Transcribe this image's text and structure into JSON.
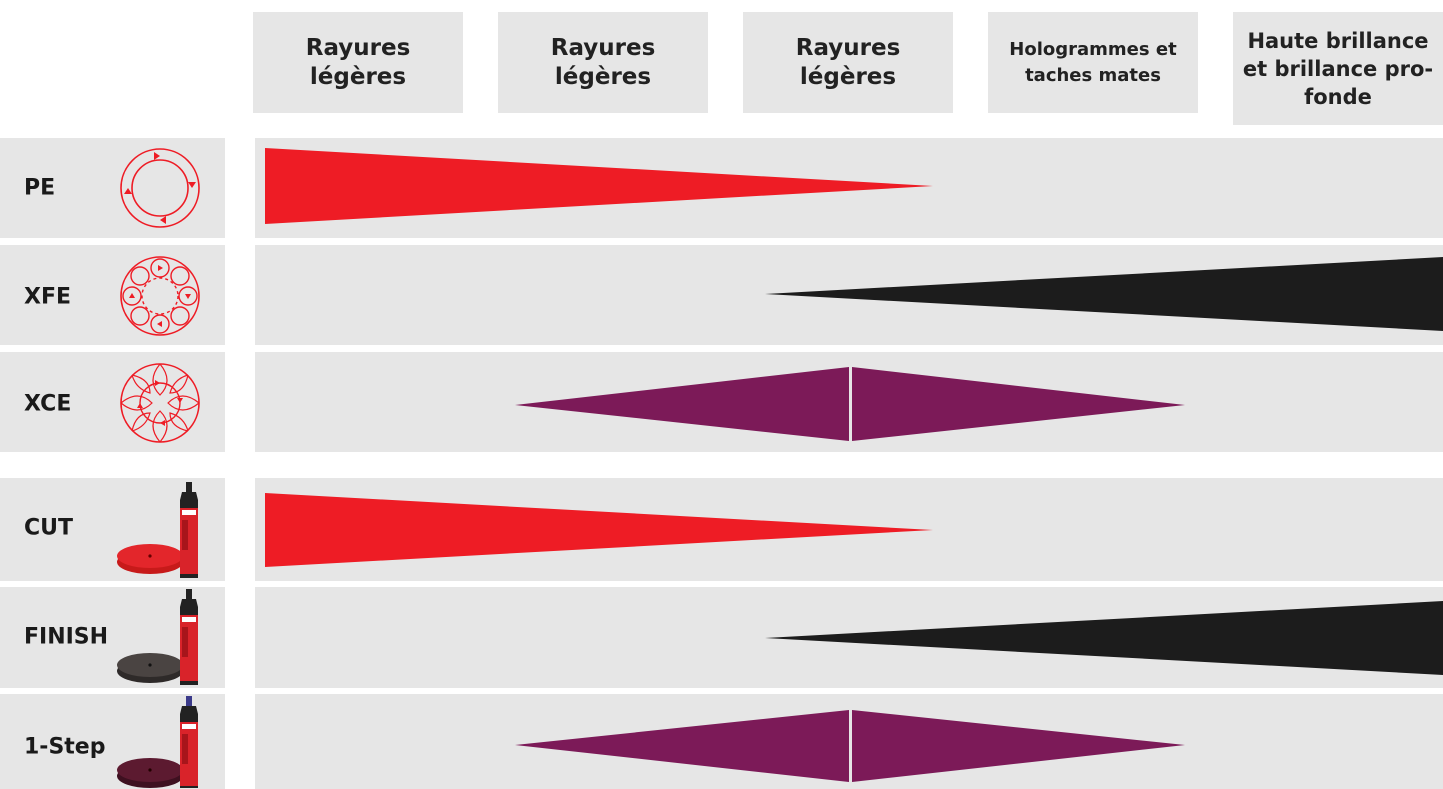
{
  "colors": {
    "red": "#ee1c25",
    "black": "#1c1c1c",
    "purple": "#7c1a58",
    "panel": "#e6e6e6"
  },
  "headers": [
    {
      "line1": "Rayures",
      "line2": "légères"
    },
    {
      "line1": "Rayures",
      "line2": "légères"
    },
    {
      "line1": "Rayures",
      "line2": "légères"
    },
    {
      "line1": "Hologrammes et",
      "line2": "taches mates"
    },
    {
      "line1": "Haute brillance",
      "line2": "et brillance pro-",
      "line3": "fonde"
    }
  ],
  "rows": [
    {
      "label": "PE",
      "icon": "rotary-motion-icon",
      "shape": "decreasing",
      "color": "red"
    },
    {
      "label": "XFE",
      "icon": "forced-random-orbital-icon",
      "shape": "increasing",
      "color": "black"
    },
    {
      "label": "XCE",
      "icon": "combined-orbital-icon",
      "shape": "diamond",
      "color": "purple"
    },
    {
      "label": "CUT",
      "icon": "red-pad-and-polish-bottle-icon",
      "shape": "decreasing",
      "color": "red"
    },
    {
      "label": "FINISH",
      "icon": "dark-pad-and-polish-bottle-icon",
      "shape": "increasing",
      "color": "black"
    },
    {
      "label": "1-Step",
      "icon": "purple-pad-and-polish-bottle-icon",
      "shape": "diamond",
      "color": "purple"
    }
  ]
}
